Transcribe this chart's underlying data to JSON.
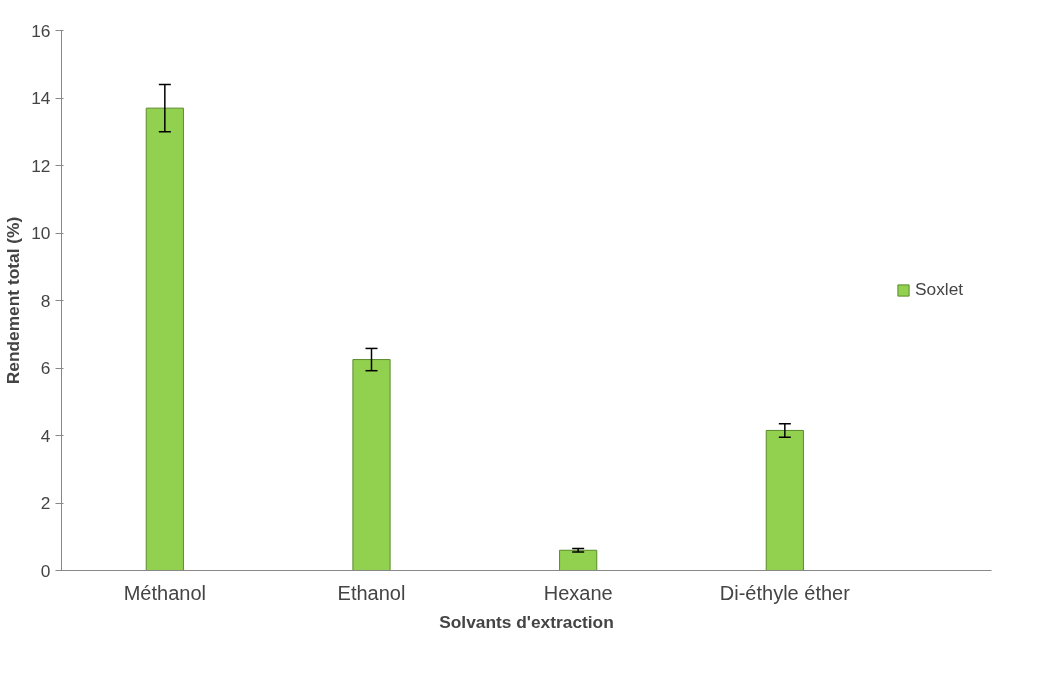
{
  "chart_data": {
    "type": "bar",
    "xlabel": "Solvants d'extraction",
    "ylabel": "Rendement total (%)",
    "categories": [
      "Méthanol",
      "Ethanol",
      "Hexane",
      "Di-éthyle éther"
    ],
    "series": [
      {
        "name": "Soxlet",
        "color": "#92d050",
        "values": [
          13.7,
          6.25,
          0.6,
          4.15
        ],
        "errors": [
          0.7,
          0.33,
          0.05,
          0.2
        ]
      }
    ],
    "ylim": [
      0,
      16
    ],
    "yticks": [
      0,
      2,
      4,
      6,
      8,
      10,
      12,
      14,
      16
    ],
    "grid": false,
    "legend": "right"
  }
}
